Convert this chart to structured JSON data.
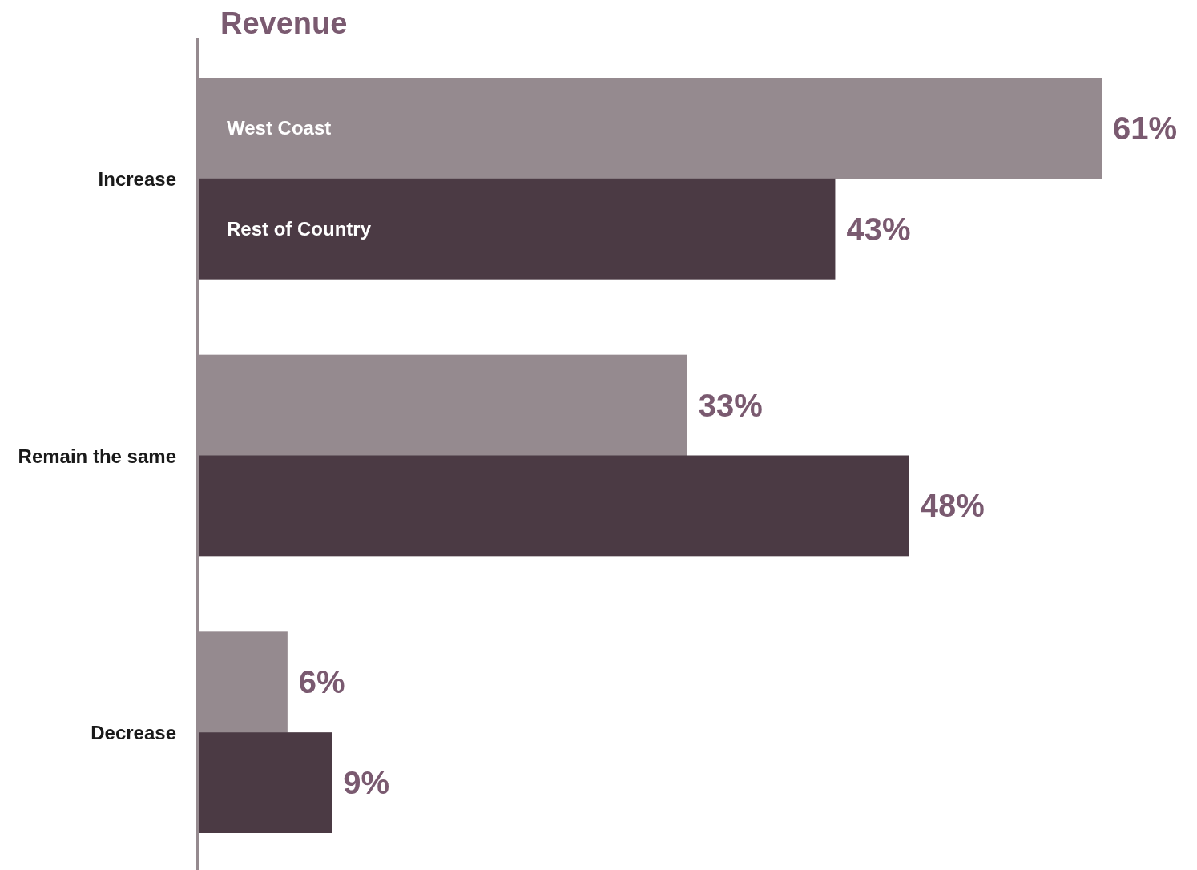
{
  "chart_data": {
    "type": "bar",
    "orientation": "horizontal",
    "title": "Revenue",
    "categories": [
      "Increase",
      "Remain the same",
      "Decrease"
    ],
    "series": [
      {
        "name": "West Coast",
        "color": "#958a8f",
        "values": [
          61,
          33,
          6
        ],
        "value_labels": [
          "61%",
          "33%",
          "6%"
        ]
      },
      {
        "name": "Rest of Country",
        "color": "#4b3a44",
        "values": [
          43,
          48,
          9
        ],
        "value_labels": [
          "43%",
          "48%",
          "9%"
        ]
      }
    ],
    "legend": false
  }
}
